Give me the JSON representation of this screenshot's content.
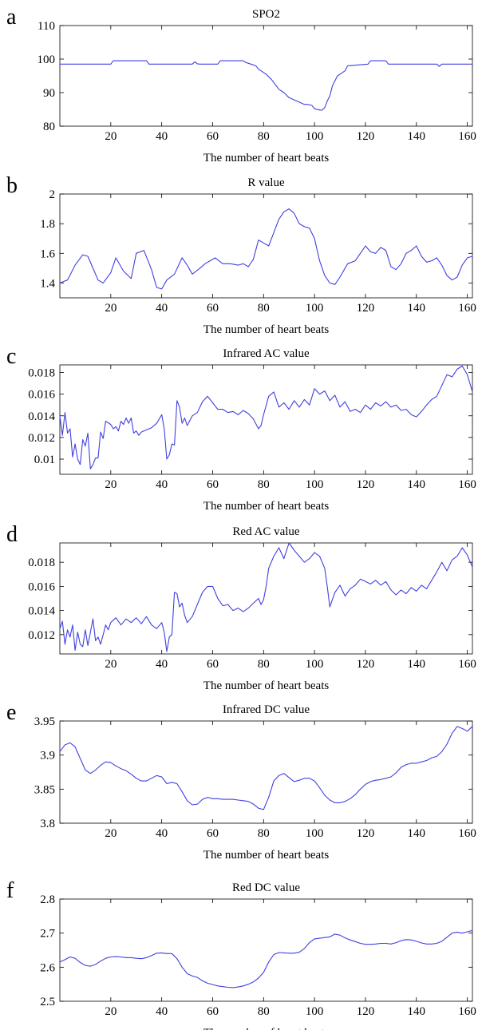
{
  "chart_data": [
    {
      "panel": "a",
      "type": "line",
      "title": "SPO2",
      "xlabel": "The number of heart beats",
      "ylabel": "",
      "xlim": [
        0,
        162
      ],
      "ylim": [
        80,
        110
      ],
      "xticks": [
        20,
        40,
        60,
        80,
        100,
        120,
        140,
        160
      ],
      "yticks": [
        80,
        90,
        100,
        110
      ],
      "ytick_labels": [
        "80",
        "90",
        "100",
        "110"
      ],
      "color": "#4040e0",
      "x": [
        0,
        20,
        21,
        34,
        35,
        52,
        53,
        54,
        55,
        62,
        63,
        72,
        73,
        75,
        77,
        78,
        79,
        81,
        83,
        85,
        86,
        88,
        90,
        93,
        96,
        97,
        99,
        100,
        102,
        103,
        104,
        105,
        106,
        107,
        109,
        110,
        112,
        113,
        121,
        122,
        128,
        129,
        148,
        149,
        150,
        162
      ],
      "y": [
        98.5,
        98.5,
        99.5,
        99.5,
        98.5,
        98.5,
        99.2,
        98.6,
        98.5,
        98.5,
        99.5,
        99.5,
        99.0,
        98.5,
        98.0,
        97.0,
        96.5,
        95.5,
        94.0,
        92.0,
        91.0,
        90.0,
        88.5,
        87.5,
        86.5,
        86.5,
        86.2,
        85.2,
        84.8,
        84.8,
        85.5,
        87.5,
        89.0,
        92.0,
        95.0,
        95.5,
        96.5,
        98.0,
        98.5,
        99.5,
        99.5,
        98.5,
        98.5,
        97.8,
        98.5,
        98.5
      ]
    },
    {
      "panel": "b",
      "type": "line",
      "title": "R value",
      "xlabel": "The number of heart beats",
      "ylabel": "",
      "xlim": [
        0,
        162
      ],
      "ylim": [
        1.3,
        2.0
      ],
      "xticks": [
        20,
        40,
        60,
        80,
        100,
        120,
        140,
        160
      ],
      "yticks": [
        1.4,
        1.6,
        1.8,
        2.0
      ],
      "ytick_labels": [
        "1.4",
        "1.6",
        "1.8",
        "2"
      ],
      "color": "#4040e0",
      "x": [
        0,
        3,
        6,
        9,
        11,
        13,
        15,
        17,
        20,
        22,
        25,
        28,
        30,
        33,
        36,
        38,
        40,
        42,
        45,
        48,
        50,
        52,
        55,
        57,
        59,
        61,
        64,
        67,
        70,
        72,
        74,
        76,
        78,
        80,
        82,
        84,
        86,
        88,
        90,
        92,
        94,
        96,
        98,
        100,
        102,
        104,
        106,
        108,
        110,
        113,
        116,
        118,
        120,
        122,
        124,
        126,
        128,
        130,
        132,
        134,
        136,
        138,
        140,
        142,
        144,
        146,
        148,
        150,
        152,
        154,
        156,
        158,
        160,
        162
      ],
      "y": [
        1.4,
        1.42,
        1.52,
        1.59,
        1.58,
        1.5,
        1.42,
        1.4,
        1.47,
        1.57,
        1.48,
        1.43,
        1.6,
        1.62,
        1.49,
        1.37,
        1.36,
        1.42,
        1.46,
        1.57,
        1.52,
        1.46,
        1.5,
        1.53,
        1.55,
        1.57,
        1.53,
        1.53,
        1.52,
        1.53,
        1.51,
        1.56,
        1.69,
        1.67,
        1.65,
        1.74,
        1.83,
        1.88,
        1.9,
        1.87,
        1.8,
        1.78,
        1.77,
        1.7,
        1.55,
        1.45,
        1.4,
        1.39,
        1.44,
        1.53,
        1.55,
        1.6,
        1.65,
        1.61,
        1.6,
        1.64,
        1.62,
        1.51,
        1.49,
        1.53,
        1.6,
        1.62,
        1.65,
        1.58,
        1.54,
        1.55,
        1.57,
        1.52,
        1.45,
        1.42,
        1.44,
        1.52,
        1.57,
        1.58
      ]
    },
    {
      "panel": "c",
      "type": "line",
      "title": "Infrared AC value",
      "xlabel": "The number of heart beats",
      "ylabel": "",
      "xlim": [
        0,
        162
      ],
      "ylim": [
        0.0086,
        0.0187
      ],
      "xticks": [
        20,
        40,
        60,
        80,
        100,
        120,
        140,
        160
      ],
      "yticks": [
        0.01,
        0.012,
        0.014,
        0.016,
        0.018
      ],
      "ytick_labels": [
        "0.01",
        "0.012",
        "0.014",
        "0.016",
        "0.018"
      ],
      "color": "#4040e0",
      "x": [
        0,
        1,
        2,
        3,
        4,
        5,
        6,
        7,
        8,
        9,
        10,
        11,
        12,
        13,
        14,
        15,
        16,
        17,
        18,
        20,
        21,
        22,
        23,
        24,
        25,
        26,
        27,
        28,
        29,
        30,
        31,
        32,
        34,
        36,
        38,
        40,
        41,
        42,
        43,
        44,
        45,
        46,
        47,
        48,
        49,
        50,
        52,
        54,
        56,
        58,
        60,
        62,
        64,
        66,
        68,
        70,
        72,
        74,
        76,
        78,
        79,
        80,
        82,
        84,
        86,
        88,
        90,
        92,
        94,
        96,
        98,
        100,
        102,
        104,
        106,
        108,
        110,
        112,
        114,
        116,
        118,
        120,
        122,
        124,
        126,
        128,
        130,
        132,
        134,
        136,
        138,
        140,
        142,
        144,
        146,
        148,
        150,
        152,
        154,
        156,
        158,
        160,
        162
      ],
      "y": [
        0.014,
        0.0122,
        0.0143,
        0.0124,
        0.0128,
        0.0102,
        0.0114,
        0.01,
        0.0095,
        0.0118,
        0.0112,
        0.0124,
        0.0091,
        0.0095,
        0.0101,
        0.0101,
        0.0125,
        0.0119,
        0.0135,
        0.0132,
        0.0128,
        0.013,
        0.0126,
        0.0135,
        0.0132,
        0.0138,
        0.0133,
        0.0138,
        0.0124,
        0.0126,
        0.0122,
        0.0125,
        0.0127,
        0.0129,
        0.0133,
        0.0141,
        0.0128,
        0.01,
        0.0104,
        0.0114,
        0.0113,
        0.0154,
        0.0148,
        0.0133,
        0.0138,
        0.0131,
        0.014,
        0.0143,
        0.0153,
        0.0158,
        0.0152,
        0.0146,
        0.0146,
        0.0143,
        0.0144,
        0.0141,
        0.0145,
        0.0142,
        0.0137,
        0.0128,
        0.0131,
        0.0141,
        0.0158,
        0.0162,
        0.0148,
        0.0152,
        0.0146,
        0.0154,
        0.0148,
        0.0155,
        0.015,
        0.0165,
        0.016,
        0.0163,
        0.0154,
        0.0159,
        0.0148,
        0.0153,
        0.0144,
        0.0146,
        0.0143,
        0.015,
        0.0146,
        0.0152,
        0.0149,
        0.0153,
        0.0148,
        0.015,
        0.0145,
        0.0146,
        0.0141,
        0.0139,
        0.0144,
        0.015,
        0.0155,
        0.0158,
        0.0168,
        0.0178,
        0.0176,
        0.0183,
        0.0186,
        0.0178,
        0.0162
      ]
    },
    {
      "panel": "d",
      "type": "line",
      "title": "Red AC value",
      "xlabel": "The number of heart beats",
      "ylabel": "",
      "xlim": [
        0,
        162
      ],
      "ylim": [
        0.0104,
        0.0196
      ],
      "xticks": [
        20,
        40,
        60,
        80,
        100,
        120,
        140,
        160
      ],
      "yticks": [
        0.012,
        0.014,
        0.016,
        0.018
      ],
      "ytick_labels": [
        "0.012",
        "0.014",
        "0.016",
        "0.018"
      ],
      "color": "#4040e0",
      "x": [
        0,
        1,
        2,
        3,
        4,
        5,
        6,
        7,
        8,
        9,
        10,
        11,
        12,
        13,
        14,
        15,
        16,
        17,
        18,
        19,
        20,
        22,
        24,
        26,
        28,
        30,
        32,
        34,
        36,
        38,
        40,
        41,
        42,
        43,
        44,
        45,
        46,
        47,
        48,
        49,
        50,
        52,
        54,
        56,
        58,
        60,
        62,
        64,
        66,
        68,
        70,
        72,
        74,
        76,
        78,
        79,
        80,
        81,
        82,
        84,
        86,
        88,
        90,
        92,
        94,
        96,
        98,
        100,
        102,
        104,
        105,
        106,
        108,
        110,
        112,
        114,
        116,
        118,
        120,
        122,
        124,
        126,
        128,
        130,
        132,
        134,
        136,
        138,
        140,
        142,
        144,
        146,
        148,
        150,
        152,
        154,
        156,
        158,
        160,
        162
      ],
      "y": [
        0.0125,
        0.0131,
        0.0112,
        0.0124,
        0.0118,
        0.0128,
        0.0107,
        0.0122,
        0.0112,
        0.011,
        0.0124,
        0.0111,
        0.0122,
        0.0133,
        0.0115,
        0.0118,
        0.0112,
        0.012,
        0.0128,
        0.0124,
        0.013,
        0.0134,
        0.0128,
        0.0133,
        0.013,
        0.0134,
        0.0129,
        0.0135,
        0.0128,
        0.0125,
        0.013,
        0.0122,
        0.0106,
        0.0118,
        0.012,
        0.0155,
        0.0154,
        0.0143,
        0.0146,
        0.0136,
        0.013,
        0.0135,
        0.0145,
        0.0155,
        0.016,
        0.016,
        0.015,
        0.0144,
        0.0145,
        0.014,
        0.0142,
        0.0139,
        0.0142,
        0.0146,
        0.015,
        0.0145,
        0.0149,
        0.016,
        0.0175,
        0.0185,
        0.0192,
        0.0183,
        0.0196,
        0.019,
        0.0185,
        0.018,
        0.0183,
        0.0188,
        0.0185,
        0.0175,
        0.016,
        0.0143,
        0.0155,
        0.0161,
        0.0152,
        0.0158,
        0.0161,
        0.0166,
        0.0164,
        0.0162,
        0.0165,
        0.0161,
        0.0164,
        0.0157,
        0.0153,
        0.0157,
        0.0154,
        0.0159,
        0.0156,
        0.0161,
        0.0158,
        0.0165,
        0.0172,
        0.018,
        0.0173,
        0.0182,
        0.0185,
        0.0192,
        0.0186,
        0.0176
      ]
    },
    {
      "panel": "e",
      "type": "line",
      "title": "Infrared DC value",
      "xlabel": "The number of heart beats",
      "ylabel": "",
      "xlim": [
        0,
        162
      ],
      "ylim": [
        3.8,
        3.95
      ],
      "xticks": [
        20,
        40,
        60,
        80,
        100,
        120,
        140,
        160
      ],
      "yticks": [
        3.8,
        3.85,
        3.9,
        3.95
      ],
      "ytick_labels": [
        "3.8",
        "3.85",
        "3.9",
        "3.95"
      ],
      "color": "#4040e0",
      "x": [
        0,
        2,
        4,
        6,
        8,
        10,
        12,
        14,
        16,
        18,
        20,
        22,
        24,
        26,
        28,
        30,
        32,
        34,
        36,
        38,
        40,
        42,
        44,
        46,
        48,
        50,
        52,
        54,
        56,
        58,
        60,
        62,
        64,
        66,
        68,
        70,
        72,
        74,
        76,
        78,
        80,
        82,
        84,
        86,
        88,
        90,
        92,
        94,
        96,
        98,
        100,
        102,
        104,
        106,
        108,
        110,
        112,
        114,
        116,
        118,
        120,
        122,
        124,
        126,
        128,
        130,
        132,
        134,
        136,
        138,
        140,
        142,
        144,
        146,
        148,
        150,
        152,
        154,
        156,
        158,
        160,
        162
      ],
      "y": [
        3.905,
        3.915,
        3.918,
        3.912,
        3.895,
        3.878,
        3.873,
        3.878,
        3.885,
        3.89,
        3.889,
        3.884,
        3.88,
        3.877,
        3.872,
        3.866,
        3.862,
        3.862,
        3.866,
        3.87,
        3.868,
        3.858,
        3.86,
        3.858,
        3.846,
        3.833,
        3.827,
        3.828,
        3.835,
        3.838,
        3.836,
        3.836,
        3.835,
        3.835,
        3.835,
        3.834,
        3.833,
        3.832,
        3.828,
        3.822,
        3.82,
        3.838,
        3.862,
        3.87,
        3.873,
        3.867,
        3.861,
        3.863,
        3.866,
        3.866,
        3.862,
        3.852,
        3.841,
        3.834,
        3.83,
        3.83,
        3.832,
        3.836,
        3.842,
        3.85,
        3.857,
        3.861,
        3.863,
        3.864,
        3.866,
        3.868,
        3.874,
        3.882,
        3.886,
        3.888,
        3.888,
        3.89,
        3.892,
        3.896,
        3.898,
        3.905,
        3.916,
        3.932,
        3.942,
        3.939,
        3.935,
        3.942
      ]
    },
    {
      "panel": "f",
      "type": "line",
      "title": "Red DC value",
      "xlabel": "The number of heart beats",
      "ylabel": "",
      "xlim": [
        0,
        162
      ],
      "ylim": [
        2.5,
        2.8
      ],
      "xticks": [
        20,
        40,
        60,
        80,
        100,
        120,
        140,
        160
      ],
      "yticks": [
        2.5,
        2.6,
        2.7,
        2.8
      ],
      "ytick_labels": [
        "2.5",
        "2.6",
        "2.7",
        "2.8"
      ],
      "color": "#4040e0",
      "x": [
        0,
        2,
        4,
        6,
        8,
        10,
        12,
        14,
        16,
        18,
        20,
        22,
        24,
        26,
        28,
        30,
        32,
        34,
        36,
        38,
        40,
        42,
        44,
        46,
        48,
        50,
        52,
        54,
        56,
        58,
        60,
        62,
        64,
        66,
        68,
        70,
        72,
        74,
        76,
        78,
        80,
        82,
        84,
        86,
        88,
        90,
        92,
        94,
        96,
        98,
        100,
        102,
        104,
        106,
        108,
        110,
        112,
        114,
        116,
        118,
        120,
        122,
        124,
        126,
        128,
        130,
        132,
        134,
        136,
        138,
        140,
        142,
        144,
        146,
        148,
        150,
        152,
        154,
        156,
        158,
        160,
        162
      ],
      "y": [
        2.615,
        2.622,
        2.63,
        2.626,
        2.614,
        2.605,
        2.603,
        2.608,
        2.618,
        2.626,
        2.63,
        2.631,
        2.63,
        2.628,
        2.628,
        2.626,
        2.625,
        2.628,
        2.634,
        2.641,
        2.642,
        2.64,
        2.64,
        2.625,
        2.6,
        2.581,
        2.574,
        2.57,
        2.56,
        2.553,
        2.549,
        2.545,
        2.543,
        2.541,
        2.54,
        2.542,
        2.545,
        2.55,
        2.557,
        2.568,
        2.585,
        2.615,
        2.637,
        2.643,
        2.642,
        2.641,
        2.641,
        2.644,
        2.655,
        2.672,
        2.683,
        2.685,
        2.687,
        2.689,
        2.697,
        2.694,
        2.686,
        2.68,
        2.675,
        2.67,
        2.667,
        2.667,
        2.668,
        2.67,
        2.67,
        2.668,
        2.672,
        2.678,
        2.681,
        2.68,
        2.676,
        2.671,
        2.668,
        2.668,
        2.67,
        2.676,
        2.688,
        2.7,
        2.703,
        2.7,
        2.704,
        2.708
      ]
    }
  ]
}
